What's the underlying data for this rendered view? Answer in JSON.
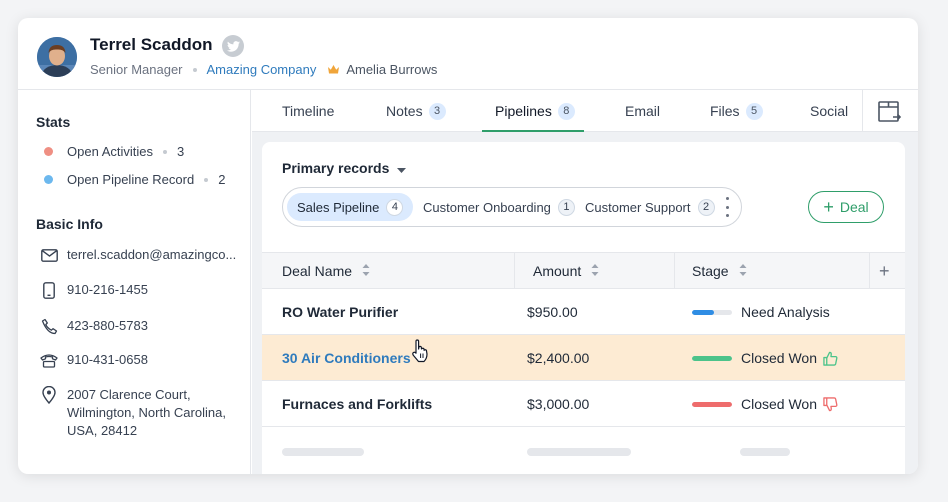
{
  "contact": {
    "name": "Terrel Scaddon",
    "title": "Senior Manager",
    "company": "Amazing Company",
    "owner": "Amelia Burrows"
  },
  "stats": {
    "heading": "Stats",
    "items": [
      {
        "label": "Open Activities",
        "count": "3",
        "color": "#ef8f83"
      },
      {
        "label": "Open Pipeline Record",
        "count": "2",
        "color": "#6cb8ee"
      }
    ]
  },
  "basic_info": {
    "heading": "Basic Info",
    "email": "terrel.scaddon@amazingco...",
    "mobile": "910-216-1455",
    "phone": "423-880-5783",
    "other_phone": "910-431-0658",
    "address_line1": "2007 Clarence Court,",
    "address_line2": "Wilmington, North Carolina,",
    "address_line3": "USA, 28412"
  },
  "tabs": [
    {
      "label": "Timeline",
      "count": null
    },
    {
      "label": "Notes",
      "count": "3"
    },
    {
      "label": "Pipelines",
      "count": "8"
    },
    {
      "label": "Email",
      "count": null
    },
    {
      "label": "Files",
      "count": "5"
    },
    {
      "label": "Social",
      "count": null
    }
  ],
  "active_tab": "Pipelines",
  "records": {
    "selector_label": "Primary records",
    "pipelines": [
      {
        "label": "Sales Pipeline",
        "count": "4"
      },
      {
        "label": "Customer Onboarding",
        "count": "1"
      },
      {
        "label": "Customer Support",
        "count": "2"
      }
    ],
    "add_deal_label": "Deal"
  },
  "table": {
    "columns": [
      "Deal Name",
      "Amount",
      "Stage"
    ],
    "rows": [
      {
        "deal": "RO Water Purifier",
        "amount": "$950.00",
        "stage": "Need Analysis",
        "progress": 0.55,
        "stage_color": "#2f8de4",
        "thumb": null
      },
      {
        "deal": "30 Air Conditioners",
        "amount": "$2,400.00",
        "stage": "Closed Won",
        "progress": 1.0,
        "stage_color": "#4cc38a",
        "thumb": "up"
      },
      {
        "deal": "Furnaces and Forklifts",
        "amount": "$3,000.00",
        "stage": "Closed Won",
        "progress": 1.0,
        "stage_color": "#ee6c6c",
        "thumb": "down"
      }
    ]
  },
  "colors": {
    "accent_green": "#2f9e6a",
    "link_blue": "#2f7bbd",
    "highlight_row": "#fdebd3"
  }
}
